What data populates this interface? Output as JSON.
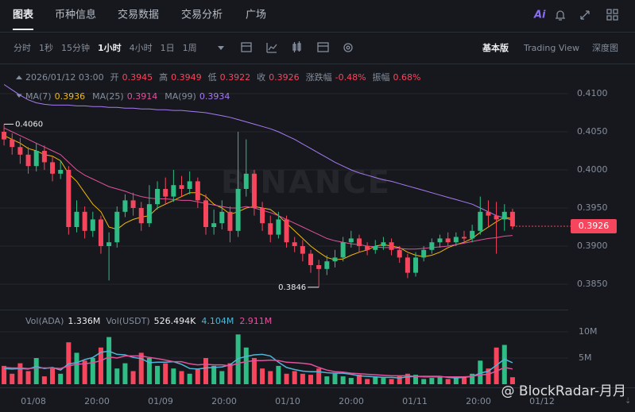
{
  "tabs": [
    "图表",
    "币种信息",
    "交易数据",
    "交易分析",
    "广场"
  ],
  "ai": "Ai",
  "intervals": [
    "分时",
    "1秒",
    "15分钟",
    "1小时",
    "4小时",
    "1日",
    "1周"
  ],
  "views": [
    "基本版",
    "Trading View",
    "深度图"
  ],
  "chart_data": {
    "type": "candlestick",
    "time": "2026/01/12 03:00",
    "info": [
      {
        "label": "开",
        "value": "0.3945"
      },
      {
        "label": "高",
        "value": "0.3949"
      },
      {
        "label": "低",
        "value": "0.3922"
      },
      {
        "label": "收",
        "value": "0.3926"
      },
      {
        "label": "涨跌幅",
        "value": "-0.48%"
      },
      {
        "label": "振幅",
        "value": "0.68%"
      }
    ],
    "up_color": "#2ebd85",
    "down_color": "#f6465d",
    "ylim": [
      0.383,
      0.4115
    ],
    "yticks": [
      {
        "value": 0.385,
        "label": "0.3850"
      },
      {
        "value": 0.39,
        "label": "0.3900"
      },
      {
        "value": 0.395,
        "label": "0.3950"
      },
      {
        "value": 0.4,
        "label": "0.4000"
      },
      {
        "value": 0.405,
        "label": "0.4050"
      },
      {
        "value": 0.41,
        "label": "0.4100"
      }
    ],
    "grid": true,
    "time_labels": [
      "01/08",
      "20:00",
      "01/09",
      "20:00",
      "01/10",
      "20:00",
      "01/11",
      "20:00",
      "01/12"
    ],
    "open": [
      0.405,
      0.404,
      0.403,
      0.402,
      0.4005,
      0.4025,
      0.401,
      0.3995,
      0.4,
      0.3925,
      0.3945,
      0.392,
      0.3935,
      0.39,
      0.3905,
      0.3945,
      0.396,
      0.395,
      0.393,
      0.3955,
      0.3975,
      0.3965,
      0.398,
      0.3975,
      0.3985,
      0.396,
      0.3925,
      0.393,
      0.3945,
      0.392,
      0.3975,
      0.3995,
      0.395,
      0.393,
      0.3915,
      0.3935,
      0.3905,
      0.39,
      0.389,
      0.3875,
      0.387,
      0.388,
      0.3885,
      0.3905,
      0.391,
      0.39,
      0.3895,
      0.39,
      0.3905,
      0.3895,
      0.3885,
      0.3865,
      0.3885,
      0.3895,
      0.3905,
      0.391,
      0.3905,
      0.3912,
      0.391,
      0.392,
      0.3945,
      0.394,
      0.3935,
      0.3945
    ],
    "high": [
      0.406,
      0.4048,
      0.4042,
      0.403,
      0.4035,
      0.4032,
      0.4018,
      0.4012,
      0.4005,
      0.396,
      0.3952,
      0.3945,
      0.394,
      0.3918,
      0.3952,
      0.3968,
      0.397,
      0.3958,
      0.398,
      0.3985,
      0.399,
      0.4,
      0.3992,
      0.3998,
      0.399,
      0.3968,
      0.3948,
      0.396,
      0.3952,
      0.405,
      0.404,
      0.4,
      0.3958,
      0.394,
      0.3945,
      0.394,
      0.3912,
      0.3908,
      0.3895,
      0.3882,
      0.3888,
      0.3895,
      0.3912,
      0.392,
      0.3915,
      0.3905,
      0.3908,
      0.3912,
      0.391,
      0.39,
      0.389,
      0.3892,
      0.39,
      0.391,
      0.3915,
      0.3918,
      0.3918,
      0.392,
      0.3928,
      0.3965,
      0.396,
      0.3958,
      0.3955,
      0.3949
    ],
    "low": [
      0.4032,
      0.402,
      0.4008,
      0.3995,
      0.3998,
      0.4,
      0.3985,
      0.3988,
      0.3915,
      0.3918,
      0.391,
      0.3912,
      0.389,
      0.3855,
      0.3898,
      0.3938,
      0.394,
      0.392,
      0.3925,
      0.3948,
      0.3955,
      0.3958,
      0.3965,
      0.3968,
      0.395,
      0.3915,
      0.3915,
      0.3922,
      0.3905,
      0.3912,
      0.3965,
      0.394,
      0.392,
      0.3905,
      0.391,
      0.3898,
      0.3892,
      0.388,
      0.3865,
      0.3846,
      0.3862,
      0.3872,
      0.388,
      0.3898,
      0.3892,
      0.3888,
      0.389,
      0.3895,
      0.3888,
      0.3878,
      0.3858,
      0.386,
      0.388,
      0.389,
      0.3898,
      0.39,
      0.39,
      0.3905,
      0.3905,
      0.3915,
      0.3925,
      0.389,
      0.392,
      0.3922
    ],
    "close": [
      0.404,
      0.403,
      0.402,
      0.4005,
      0.4025,
      0.401,
      0.3995,
      0.4,
      0.3925,
      0.3945,
      0.392,
      0.3935,
      0.39,
      0.3905,
      0.3945,
      0.396,
      0.395,
      0.393,
      0.3955,
      0.3975,
      0.3965,
      0.398,
      0.3975,
      0.3985,
      0.396,
      0.3925,
      0.393,
      0.3945,
      0.392,
      0.3975,
      0.3995,
      0.395,
      0.393,
      0.3915,
      0.3935,
      0.3905,
      0.39,
      0.389,
      0.3875,
      0.387,
      0.388,
      0.3885,
      0.3905,
      0.391,
      0.39,
      0.3895,
      0.39,
      0.3905,
      0.3895,
      0.3885,
      0.3865,
      0.3885,
      0.3895,
      0.3905,
      0.391,
      0.3905,
      0.3912,
      0.391,
      0.392,
      0.3945,
      0.394,
      0.3935,
      0.3945,
      0.3926
    ],
    "high_label": "0.4060",
    "low_label": "0.3846",
    "price_tag": "0.3926",
    "watermark": "BINANCE",
    "ma": [
      {
        "name": "MA(7)",
        "value_label": "0.3936",
        "color": "#f0b90b",
        "values": [
          0.4045,
          0.404,
          0.4035,
          0.4028,
          0.4025,
          0.402,
          0.4018,
          0.4012,
          0.3995,
          0.3985,
          0.397,
          0.3955,
          0.3945,
          0.3925,
          0.3922,
          0.393,
          0.3935,
          0.3938,
          0.394,
          0.395,
          0.3955,
          0.396,
          0.3965,
          0.397,
          0.397,
          0.3965,
          0.3955,
          0.395,
          0.3942,
          0.3945,
          0.395,
          0.3952,
          0.395,
          0.3948,
          0.394,
          0.393,
          0.392,
          0.391,
          0.39,
          0.3892,
          0.3885,
          0.3882,
          0.3883,
          0.3888,
          0.3892,
          0.3895,
          0.39,
          0.3902,
          0.39,
          0.3898,
          0.3892,
          0.3888,
          0.3886,
          0.3888,
          0.3892,
          0.3898,
          0.3902,
          0.3905,
          0.391,
          0.3918,
          0.3925,
          0.3932,
          0.3938,
          0.3936
        ]
      },
      {
        "name": "MA(25)",
        "value_label": "0.3914",
        "color": "#e0529c",
        "values": [
          0.4055,
          0.405,
          0.4045,
          0.404,
          0.4035,
          0.403,
          0.4025,
          0.402,
          0.401,
          0.4,
          0.3993,
          0.3988,
          0.3983,
          0.3978,
          0.3975,
          0.3972,
          0.3968,
          0.3965,
          0.3963,
          0.3962,
          0.3962,
          0.3961,
          0.396,
          0.396,
          0.3958,
          0.3956,
          0.3954,
          0.3952,
          0.395,
          0.395,
          0.3952,
          0.395,
          0.3947,
          0.3944,
          0.394,
          0.3935,
          0.393,
          0.3925,
          0.392,
          0.3915,
          0.391,
          0.3907,
          0.3905,
          0.3903,
          0.3902,
          0.39,
          0.3899,
          0.3898,
          0.3898,
          0.3897,
          0.3896,
          0.3896,
          0.3897,
          0.3898,
          0.3899,
          0.39,
          0.3902,
          0.3904,
          0.3906,
          0.3908,
          0.391,
          0.3911,
          0.3913,
          0.3914
        ]
      },
      {
        "name": "MA(99)",
        "value_label": "0.3934",
        "color": "#a67bf2",
        "values": [
          0.4112,
          0.4105,
          0.4098,
          0.4092,
          0.4088,
          0.4086,
          0.4085,
          0.4085,
          0.4085,
          0.4084,
          0.4084,
          0.4083,
          0.4083,
          0.4082,
          0.4082,
          0.4081,
          0.4081,
          0.408,
          0.408,
          0.4079,
          0.4079,
          0.4078,
          0.4078,
          0.4077,
          0.4076,
          0.4075,
          0.4073,
          0.4071,
          0.4069,
          0.4066,
          0.4063,
          0.406,
          0.4057,
          0.4054,
          0.405,
          0.4045,
          0.404,
          0.4034,
          0.4028,
          0.4022,
          0.4016,
          0.401,
          0.4005,
          0.4,
          0.3996,
          0.3993,
          0.399,
          0.3987,
          0.3985,
          0.3982,
          0.3979,
          0.3976,
          0.3973,
          0.397,
          0.3967,
          0.3964,
          0.3961,
          0.3958,
          0.3955,
          0.395,
          0.3945,
          0.394,
          0.3937,
          0.3934
        ]
      }
    ],
    "volume": {
      "name": "Vol(ADA)",
      "value_label": "1.336M",
      "ylim": [
        0,
        11.5
      ],
      "yticks": [
        {
          "value": 5,
          "label": "5M"
        },
        {
          "value": 10,
          "label": "10M"
        }
      ],
      "values": [
        3.5,
        2.0,
        4.0,
        2.5,
        5.0,
        1.5,
        3.0,
        2.0,
        8.0,
        6.0,
        4.5,
        5.0,
        7.0,
        9.0,
        3.0,
        4.0,
        2.5,
        6.0,
        5.0,
        3.5,
        4.0,
        3.0,
        2.5,
        2.0,
        3.0,
        5.0,
        3.5,
        2.5,
        4.0,
        9.5,
        7.0,
        5.0,
        3.0,
        2.5,
        3.5,
        2.0,
        2.5,
        2.0,
        1.8,
        3.0,
        1.5,
        2.0,
        1.5,
        1.2,
        1.8,
        1.0,
        1.5,
        1.2,
        1.0,
        1.5,
        2.0,
        1.8,
        1.0,
        1.2,
        1.5,
        1.0,
        1.3,
        1.5,
        2.0,
        4.5,
        3.0,
        7.0,
        7.5,
        1.336
      ]
    },
    "volume_usdt": {
      "name": "Vol(USDT)",
      "value_label": "526.494K"
    },
    "volume_ma": [
      {
        "value_label": "4.104M",
        "color": "#4fb6d6",
        "values": [
          3.0,
          2.9,
          3.0,
          2.9,
          3.4,
          3.0,
          3.2,
          2.7,
          3.9,
          4.1,
          4.7,
          5.1,
          6.1,
          6.3,
          5.7,
          5.6,
          5.1,
          4.9,
          4.1,
          4.2,
          4.2,
          4.3,
          3.8,
          3.0,
          2.9,
          3.1,
          3.2,
          3.3,
          3.7,
          4.9,
          5.3,
          5.6,
          5.7,
          5.4,
          4.2,
          3.2,
          2.8,
          2.5,
          2.4,
          2.4,
          2.2,
          2.1,
          2.1,
          1.9,
          1.6,
          1.5,
          1.4,
          1.3,
          1.3,
          1.2,
          1.4,
          1.5,
          1.5,
          1.5,
          1.5,
          1.3,
          1.2,
          1.3,
          1.5,
          2.1,
          2.5,
          3.6,
          4.8,
          4.104
        ]
      },
      {
        "value_label": "2.911M",
        "color": "#e0529c",
        "values": [
          3.2,
          3.1,
          3.1,
          3.0,
          3.1,
          3.1,
          3.1,
          3.0,
          3.5,
          3.8,
          3.9,
          4.1,
          4.5,
          5.2,
          5.0,
          5.4,
          5.4,
          5.4,
          5.1,
          4.9,
          4.6,
          4.3,
          4.3,
          3.9,
          3.7,
          3.8,
          3.7,
          3.7,
          3.5,
          4.0,
          4.3,
          4.5,
          4.5,
          4.6,
          4.5,
          4.2,
          4.1,
          4.0,
          3.8,
          3.2,
          2.7,
          2.4,
          2.3,
          2.1,
          2.0,
          1.9,
          1.8,
          1.7,
          1.6,
          1.6,
          1.6,
          1.5,
          1.4,
          1.4,
          1.4,
          1.4,
          1.4,
          1.4,
          1.5,
          1.8,
          1.9,
          2.5,
          3.2,
          2.911
        ]
      }
    ]
  },
  "credit": "@ BlockRadar-月月"
}
